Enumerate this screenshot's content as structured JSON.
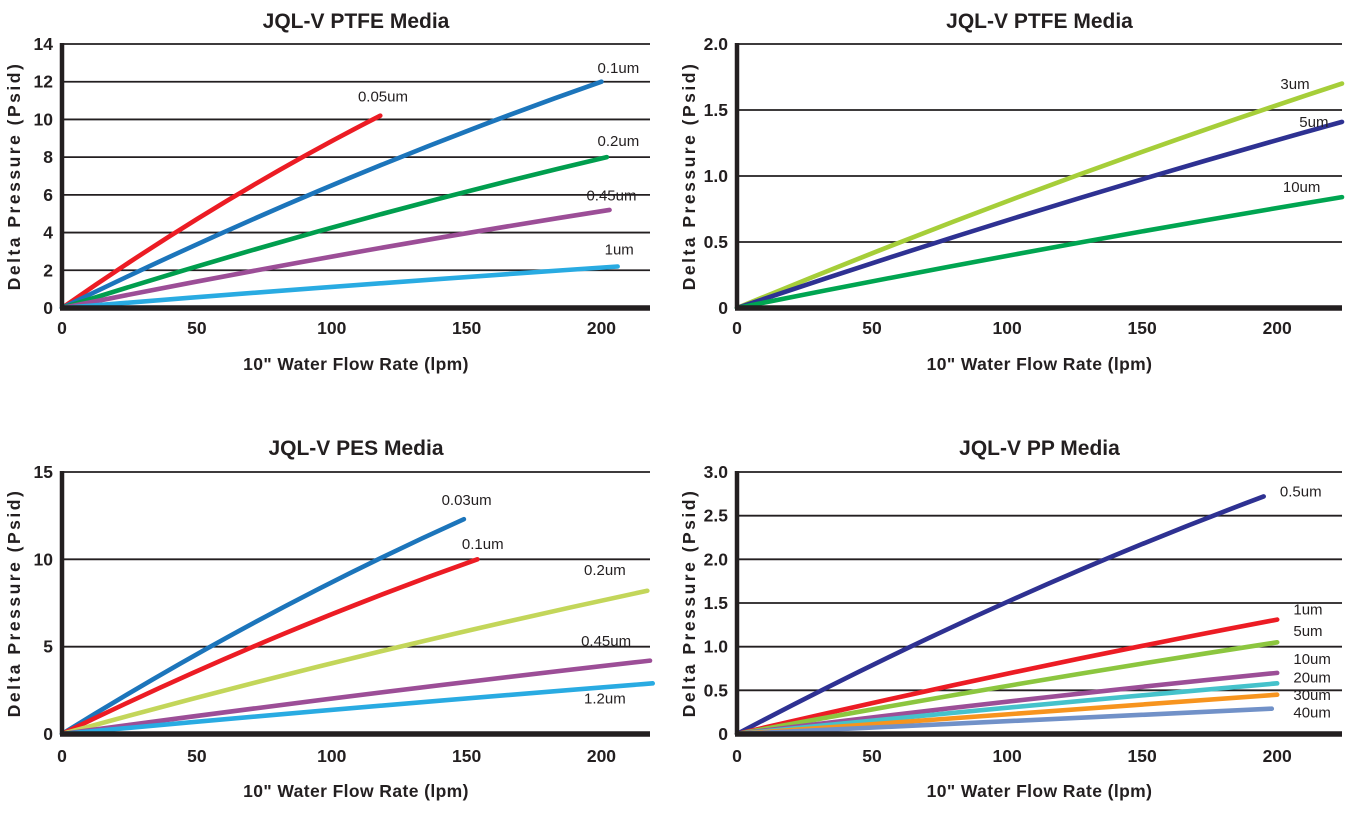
{
  "page": {
    "background": "#ffffff",
    "text_color": "#231F20"
  },
  "chart_data": [
    {
      "type": "line",
      "title": "JQL-V PTFE Media",
      "xlabel": "10\" Water Flow Rate  (lpm)",
      "ylabel": "Delta Pressure (Psid)",
      "xlim": [
        0,
        218
      ],
      "ylim": [
        0,
        14
      ],
      "grid": "horizontal",
      "legend_position": "inline-labels",
      "x_ticks": [
        {
          "v": 0,
          "label": "0"
        },
        {
          "v": 50,
          "label": "50"
        },
        {
          "v": 100,
          "label": "100"
        },
        {
          "v": 150,
          "label": "150"
        },
        {
          "v": 200,
          "label": "200"
        }
      ],
      "y_ticks": [
        {
          "v": 0,
          "label": "0"
        },
        {
          "v": 2,
          "label": "2"
        },
        {
          "v": 4,
          "label": "4"
        },
        {
          "v": 6,
          "label": "6"
        },
        {
          "v": 8,
          "label": "8"
        },
        {
          "v": 10,
          "label": "10"
        },
        {
          "v": 12,
          "label": "12"
        },
        {
          "v": 14,
          "label": "14"
        }
      ],
      "series": [
        {
          "name": "0.05um",
          "color": "#EC1C24",
          "points": [
            [
              0,
              0
            ],
            [
              59,
              5.5
            ],
            [
              118,
              10.2
            ]
          ],
          "label": {
            "x": 119,
            "y": 10.95,
            "anchor": "middle"
          }
        },
        {
          "name": "0.1um",
          "color": "#1C75BB",
          "points": [
            [
              0,
              0
            ],
            [
              100,
              6.5
            ],
            [
              200,
              12.0
            ]
          ],
          "label": {
            "x": 214,
            "y": 12.45,
            "anchor": "end"
          }
        },
        {
          "name": "0.2um",
          "color": "#009E4E",
          "points": [
            [
              0,
              0
            ],
            [
              101,
              4.3
            ],
            [
              202,
              8.0
            ]
          ],
          "label": {
            "x": 214,
            "y": 8.6,
            "anchor": "end"
          }
        },
        {
          "name": "0.45um",
          "color": "#9C4E97",
          "points": [
            [
              0,
              0
            ],
            [
              101,
              2.75
            ],
            [
              203,
              5.2
            ]
          ],
          "label": {
            "x": 213,
            "y": 5.7,
            "anchor": "end"
          }
        },
        {
          "name": "1um",
          "color": "#29ABE2",
          "points": [
            [
              0,
              0
            ],
            [
              103,
              1.15
            ],
            [
              206,
              2.2
            ]
          ],
          "label": {
            "x": 212,
            "y": 2.85,
            "anchor": "end"
          }
        }
      ]
    },
    {
      "type": "line",
      "title": "JQL-V PTFE Media",
      "xlabel": "10\" Water Flow Rate  (lpm)",
      "ylabel": "Delta Pressure (Psid)",
      "xlim": [
        0,
        224
      ],
      "ylim": [
        0,
        2.0
      ],
      "grid": "horizontal",
      "legend_position": "inline-labels",
      "x_ticks": [
        {
          "v": 0,
          "label": "0"
        },
        {
          "v": 50,
          "label": "50"
        },
        {
          "v": 100,
          "label": "100"
        },
        {
          "v": 150,
          "label": "150"
        },
        {
          "v": 200,
          "label": "200"
        }
      ],
      "y_ticks": [
        {
          "v": 0,
          "label": "0"
        },
        {
          "v": 0.5,
          "label": "0.5"
        },
        {
          "v": 1.0,
          "label": "1.0"
        },
        {
          "v": 1.5,
          "label": "1.5"
        },
        {
          "v": 2.0,
          "label": "2.0"
        }
      ],
      "series": [
        {
          "name": "3um",
          "color": "#A6CE39",
          "points": [
            [
              0,
              0
            ],
            [
              112,
              0.9
            ],
            [
              224,
              1.7
            ]
          ],
          "label": {
            "x": 212,
            "y": 1.66,
            "anchor": "end"
          }
        },
        {
          "name": "5um",
          "color": "#2E3192",
          "points": [
            [
              0,
              0
            ],
            [
              112,
              0.74
            ],
            [
              224,
              1.41
            ]
          ],
          "label": {
            "x": 219,
            "y": 1.37,
            "anchor": "end"
          }
        },
        {
          "name": "10um",
          "color": "#00A551",
          "points": [
            [
              0,
              0
            ],
            [
              112,
              0.44
            ],
            [
              224,
              0.84
            ]
          ],
          "label": {
            "x": 216,
            "y": 0.88,
            "anchor": "end"
          }
        }
      ]
    },
    {
      "type": "line",
      "title": "JQL-V PES Media",
      "xlabel": "10\" Water Flow Rate  (lpm)",
      "ylabel": "Delta Pressure (Psid)",
      "xlim": [
        0,
        218
      ],
      "ylim": [
        0,
        15
      ],
      "grid": "horizontal",
      "legend_position": "inline-labels",
      "x_ticks": [
        {
          "v": 0,
          "label": "0"
        },
        {
          "v": 50,
          "label": "50"
        },
        {
          "v": 100,
          "label": "100"
        },
        {
          "v": 150,
          "label": "150"
        },
        {
          "v": 200,
          "label": "200"
        }
      ],
      "y_ticks": [
        {
          "v": 0,
          "label": "0"
        },
        {
          "v": 5,
          "label": "5"
        },
        {
          "v": 10,
          "label": "10"
        },
        {
          "v": 15,
          "label": "15"
        }
      ],
      "series": [
        {
          "name": "0.03um",
          "color": "#1C75BB",
          "points": [
            [
              0,
              0
            ],
            [
              74,
              6.6
            ],
            [
              149,
              12.3
            ]
          ],
          "label": {
            "x": 150,
            "y": 13.1,
            "anchor": "middle"
          }
        },
        {
          "name": "0.1um",
          "color": "#EC1C24",
          "points": [
            [
              0,
              0
            ],
            [
              77,
              5.4
            ],
            [
              154,
              10.0
            ]
          ],
          "label": {
            "x": 156,
            "y": 10.6,
            "anchor": "middle"
          }
        },
        {
          "name": "0.2um",
          "color": "#C3D65A",
          "points": [
            [
              0,
              0
            ],
            [
              108,
              4.35
            ],
            [
              217,
              8.2
            ]
          ],
          "label": {
            "x": 209,
            "y": 9.1,
            "anchor": "end"
          }
        },
        {
          "name": "0.45um",
          "color": "#9C4E97",
          "points": [
            [
              0,
              0
            ],
            [
              109,
              2.2
            ],
            [
              218,
              4.2
            ]
          ],
          "label": {
            "x": 211,
            "y": 5.05,
            "anchor": "end"
          }
        },
        {
          "name": "1.2um",
          "color": "#29ABE2",
          "points": [
            [
              0,
              0
            ],
            [
              109,
              1.5
            ],
            [
              219,
              2.9
            ]
          ],
          "label": {
            "x": 209,
            "y": 1.75,
            "anchor": "end"
          }
        }
      ]
    },
    {
      "type": "line",
      "title": "JQL-V PP Media",
      "xlabel": "10\" Water Flow Rate  (lpm)",
      "ylabel": "Delta Pressure (Psid)",
      "xlim": [
        0,
        224
      ],
      "ylim": [
        0,
        3.0
      ],
      "grid": "horizontal",
      "legend_position": "inline-labels",
      "x_ticks": [
        {
          "v": 0,
          "label": "0"
        },
        {
          "v": 50,
          "label": "50"
        },
        {
          "v": 100,
          "label": "100"
        },
        {
          "v": 150,
          "label": "150"
        },
        {
          "v": 200,
          "label": "200"
        }
      ],
      "y_ticks": [
        {
          "v": 0,
          "label": "0"
        },
        {
          "v": 0.5,
          "label": "0.5"
        },
        {
          "v": 1.0,
          "label": "1.0"
        },
        {
          "v": 1.5,
          "label": "1.5"
        },
        {
          "v": 2.0,
          "label": "2.0"
        },
        {
          "v": 2.5,
          "label": "2.5"
        },
        {
          "v": 3.0,
          "label": "3.0"
        }
      ],
      "series": [
        {
          "name": "0.5um",
          "color": "#2E3192",
          "points": [
            [
              0,
              0
            ],
            [
              97,
              1.47
            ],
            [
              195,
              2.72
            ]
          ],
          "label": {
            "x": 201,
            "y": 2.72,
            "anchor": "start"
          }
        },
        {
          "name": "1um",
          "color": "#EC1C24",
          "points": [
            [
              0,
              0
            ],
            [
              100,
              0.69
            ],
            [
              200,
              1.31
            ]
          ],
          "label": {
            "x": 206,
            "y": 1.37,
            "anchor": "start"
          }
        },
        {
          "name": "5um",
          "color": "#8CC63F",
          "points": [
            [
              0,
              0
            ],
            [
              100,
              0.55
            ],
            [
              200,
              1.05
            ]
          ],
          "label": {
            "x": 206,
            "y": 1.12,
            "anchor": "start"
          }
        },
        {
          "name": "10um",
          "color": "#9C4E97",
          "points": [
            [
              0,
              0
            ],
            [
              100,
              0.37
            ],
            [
              200,
              0.7
            ]
          ],
          "label": {
            "x": 206,
            "y": 0.8,
            "anchor": "start"
          }
        },
        {
          "name": "20um",
          "color": "#45C2CB",
          "points": [
            [
              0,
              0
            ],
            [
              100,
              0.3
            ],
            [
              200,
              0.58
            ]
          ],
          "label": {
            "x": 206,
            "y": 0.59,
            "anchor": "start"
          }
        },
        {
          "name": "30um",
          "color": "#F7941E",
          "points": [
            [
              0,
              0
            ],
            [
              100,
              0.23
            ],
            [
              200,
              0.45
            ]
          ],
          "label": {
            "x": 206,
            "y": 0.39,
            "anchor": "start"
          }
        },
        {
          "name": "40um",
          "color": "#7191C8",
          "points": [
            [
              0,
              0
            ],
            [
              99,
              0.15
            ],
            [
              198,
              0.29
            ]
          ],
          "label": {
            "x": 206,
            "y": 0.19,
            "anchor": "start"
          }
        }
      ]
    }
  ]
}
